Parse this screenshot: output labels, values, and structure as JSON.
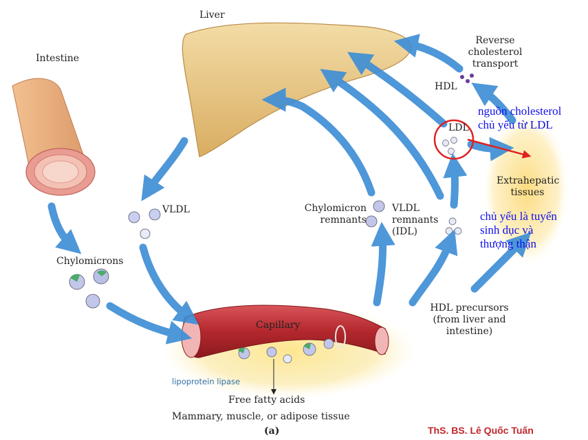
{
  "labels": {
    "liver": "Liver",
    "intestine": "Intestine",
    "reverse_transport": [
      "Reverse",
      "cholesterol",
      "transport"
    ],
    "hdl": "HDL",
    "ldl": "LDL",
    "extrahepatic": [
      "Extrahepatic",
      "tissues"
    ],
    "vldl": "VLDL",
    "chylomicrons": "Chylomicrons",
    "chylomicron_remnants": [
      "Chylomicron",
      "remnants"
    ],
    "vldl_remnants": [
      "VLDL",
      "remnants",
      "(IDL)"
    ],
    "capillary": "Capillary",
    "lipoprotein_lipase": "lipoprotein lipase",
    "free_fatty_acids": "Free fatty acids",
    "hdl_precursors": [
      "HDL precursors",
      "(from liver and",
      "intestine)"
    ],
    "tissue_caption": "Mammary, muscle, or adipose tissue",
    "figure_letter": "(a)"
  },
  "annotations": {
    "ldl_source": [
      "nguồn cholesterol",
      "chủ yếu từ LDL"
    ],
    "gonads": [
      "chủ yếu là tuyến",
      "sinh dục và",
      "thượng thận"
    ]
  },
  "credit": "ThS. BS. Lê Quốc Tuấn",
  "colors": {
    "arrow": "#3f8fd6",
    "liver": "#e9c98a",
    "intestine": "#e8a878",
    "capillary": "#b3282d",
    "tissue_glow": "#fde58a",
    "annotation_text": "#1010ee",
    "highlight_red": "#e02020",
    "credit_text": "#c0262b"
  }
}
